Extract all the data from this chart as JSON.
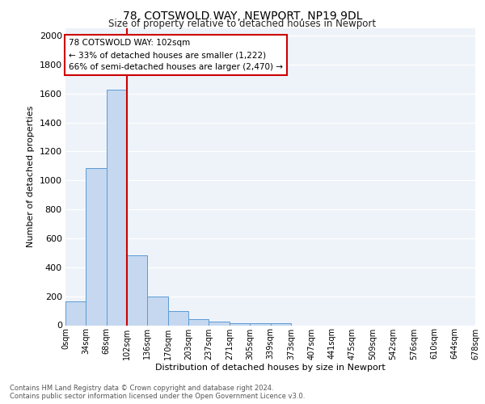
{
  "title": "78, COTSWOLD WAY, NEWPORT, NP19 9DL",
  "subtitle": "Size of property relative to detached houses in Newport",
  "xlabel": "Distribution of detached houses by size in Newport",
  "ylabel": "Number of detached properties",
  "bin_labels": [
    "0sqm",
    "34sqm",
    "68sqm",
    "102sqm",
    "136sqm",
    "170sqm",
    "203sqm",
    "237sqm",
    "271sqm",
    "305sqm",
    "339sqm",
    "373sqm",
    "407sqm",
    "441sqm",
    "475sqm",
    "509sqm",
    "542sqm",
    "576sqm",
    "610sqm",
    "644sqm",
    "678sqm"
  ],
  "bar_values": [
    165,
    1085,
    1625,
    480,
    200,
    100,
    40,
    25,
    15,
    15,
    15,
    0,
    0,
    0,
    0,
    0,
    0,
    0,
    0,
    0
  ],
  "bar_color": "#c5d8f0",
  "bar_edge_color": "#5b9bd5",
  "vline_color": "#cc0000",
  "vline_x_index": 3,
  "annotation_text": "78 COTSWOLD WAY: 102sqm\n← 33% of detached houses are smaller (1,222)\n66% of semi-detached houses are larger (2,470) →",
  "annotation_box_color": "#ffffff",
  "annotation_box_edge": "#cc0000",
  "bg_color": "#eef3fa",
  "grid_color": "#ffffff",
  "footer_line1": "Contains HM Land Registry data © Crown copyright and database right 2024.",
  "footer_line2": "Contains public sector information licensed under the Open Government Licence v3.0.",
  "ylim": [
    0,
    2050
  ],
  "yticks": [
    0,
    200,
    400,
    600,
    800,
    1000,
    1200,
    1400,
    1600,
    1800,
    2000
  ]
}
